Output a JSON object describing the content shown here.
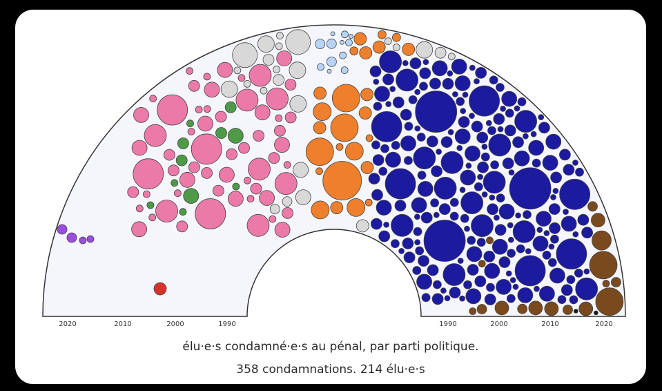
{
  "chart_data": {
    "type": "scatter",
    "title": "",
    "caption_line1": "élu·e·s condamné·e·s au pénal, par parti politique.",
    "caption_line2": "358 condamnations. 214 élu·e·s",
    "left_axis_ticks": [
      "2020",
      "2010",
      "2000",
      "1990"
    ],
    "right_axis_ticks": [
      "1990",
      "2000",
      "2010",
      "2020"
    ],
    "colors": {
      "background": "#f5f6fb",
      "purple": "#9b4de0",
      "red": "#d2342a",
      "green": "#4f9a48",
      "pink": "#ec7aa8",
      "grey": "#d8d8d8",
      "light_blue": "#b7d3f6",
      "orange": "#ee7f2c",
      "dark_blue": "#1c1a9e",
      "brown": "#7a4a1f",
      "black": "#1a1a1a"
    },
    "grid": false,
    "legend": "none"
  }
}
